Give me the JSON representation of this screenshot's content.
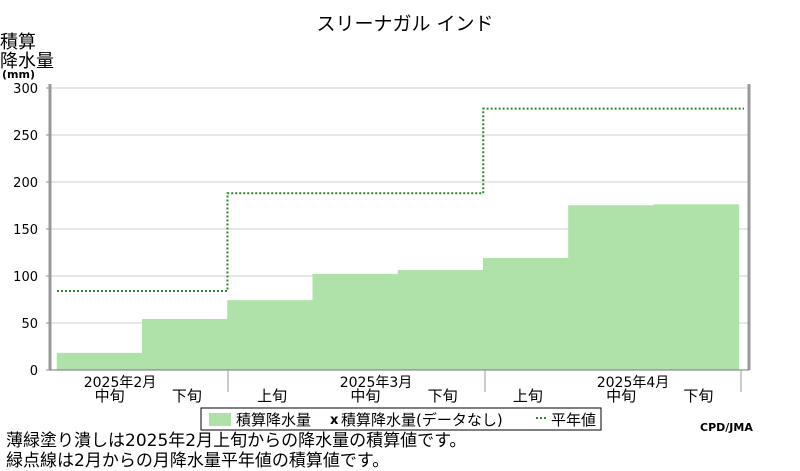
{
  "chart_data": {
    "type": "bar",
    "title": "スリーナガル インド",
    "ylabel": [
      "積算",
      "降水量",
      "(mm)"
    ],
    "ylim": [
      0,
      300
    ],
    "y_ticks": [
      "0",
      "50",
      "100",
      "150",
      "200",
      "250",
      "300"
    ],
    "period_labels": [
      "中旬",
      "下旬",
      "上旬",
      "中旬",
      "下旬",
      "上旬",
      "中旬",
      "下旬"
    ],
    "month_labels": [
      "2025年2月",
      "2025年3月",
      "2025年4月"
    ],
    "series": [
      {
        "name": "積算降水量",
        "type": "bar",
        "color": "#aee2a8",
        "values": [
          18,
          54,
          74,
          102,
          106,
          119,
          175,
          176
        ]
      },
      {
        "name": "積算降水量(データなし)",
        "marker": "x"
      },
      {
        "name": "平年値",
        "type": "step",
        "color": "#228b22",
        "values": [
          84,
          84,
          188,
          188,
          188,
          278,
          278,
          278
        ]
      }
    ],
    "source": "CPD/JMA",
    "grid": true
  },
  "notes": [
    "薄緑塗り潰しは2025年2月上旬からの降水量の積算値です。",
    "緑点線は2月からの月降水量平年値の積算値です。"
  ]
}
